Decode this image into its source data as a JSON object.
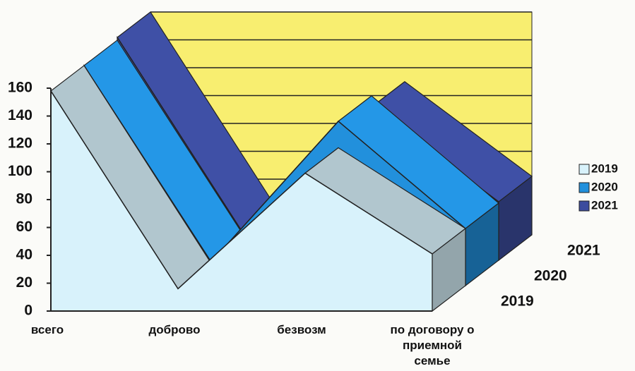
{
  "chart_data": {
    "type": "area3d",
    "categories": [
      "всего",
      "доброво",
      "безвозм",
      "по договору о приемной семье"
    ],
    "series": [
      {
        "name": "2019",
        "color": "#d8f2fb",
        "values": [
          158,
          16,
          99,
          41
        ]
      },
      {
        "name": "2020",
        "color": "#2290dc",
        "values": [
          158,
          17,
          118,
          41
        ]
      },
      {
        "name": "2021",
        "color": "#3c4c9e",
        "values": [
          160,
          18,
          110,
          42
        ]
      }
    ],
    "ylim": [
      0,
      160
    ],
    "yticks": [
      0,
      20,
      40,
      60,
      80,
      100,
      120,
      140,
      160
    ],
    "wall_color": "#f8ee70",
    "grid": true,
    "legend": "right"
  }
}
